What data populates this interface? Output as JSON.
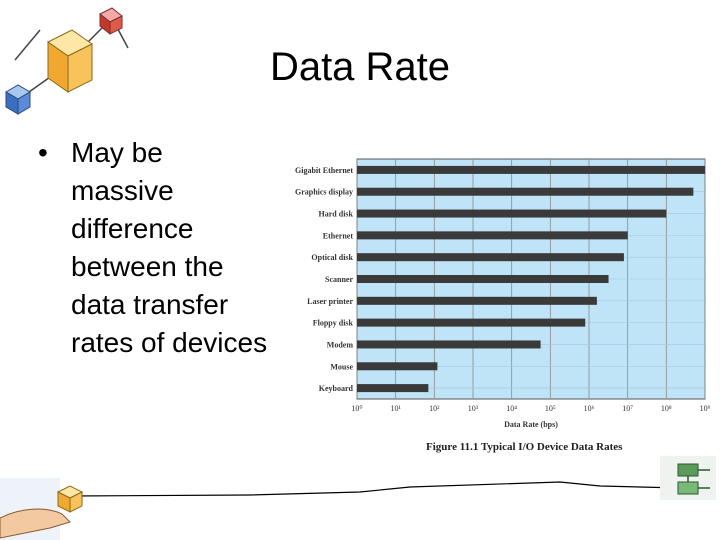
{
  "slide": {
    "title": "Data Rate",
    "bullet": "May be massive difference between the data transfer rates of devices",
    "caption": "Figure 11.1  Typical I/O Device Data Rates"
  },
  "chart_data": {
    "type": "bar",
    "orientation": "horizontal",
    "xscale": "log",
    "xlim": [
      1,
      1000000000
    ],
    "xlabel": "Data Rate (bps)",
    "xticks": [
      1,
      10,
      100,
      1000,
      10000,
      100000,
      1000000,
      10000000,
      100000000,
      1000000000
    ],
    "xtick_labels": [
      "10⁰",
      "10¹",
      "10²",
      "10³",
      "10⁴",
      "10⁵",
      "10⁶",
      "10⁷",
      "10⁸",
      "10⁹"
    ],
    "grid": true,
    "categories": [
      "Gigabit Ethernet",
      "Graphics display",
      "Hard disk",
      "Ethernet",
      "Optical disk",
      "Scanner",
      "Laser printer",
      "Floppy disk",
      "Modem",
      "Mouse",
      "Keyboard"
    ],
    "values": [
      1000000000,
      500000000,
      100000000,
      10000000,
      8000000,
      3200000,
      1600000,
      800000,
      56000,
      120,
      70
    ],
    "colors": {
      "plot_bg": "#bfe3f7",
      "bar": "#3a3a3a",
      "grid": "#8c8c8c"
    }
  },
  "decor": {
    "top_left_clipart": "network-cubes-icon",
    "bottom_left_clipart": "hand-holding-cube-icon",
    "bottom_right_clipart": "green-device-icon"
  }
}
